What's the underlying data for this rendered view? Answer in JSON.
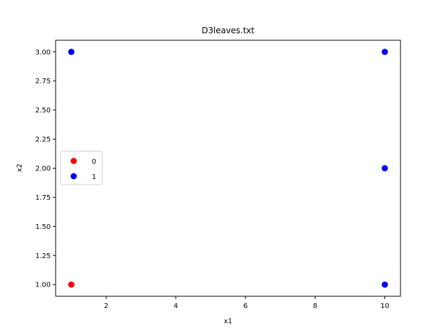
{
  "chart_data": {
    "type": "scatter",
    "title": "D3leaves.txt",
    "xlabel": "x1",
    "ylabel": "x2",
    "xlim": [
      0.55,
      10.45
    ],
    "ylim": [
      0.9,
      3.1
    ],
    "xticks": [
      2,
      4,
      6,
      8,
      10
    ],
    "xtick_labels": [
      "2",
      "4",
      "6",
      "8",
      "10"
    ],
    "yticks": [
      1.0,
      1.25,
      1.5,
      1.75,
      2.0,
      2.25,
      2.5,
      2.75,
      3.0
    ],
    "ytick_labels": [
      "1.00",
      "1.25",
      "1.50",
      "1.75",
      "2.00",
      "2.25",
      "2.50",
      "2.75",
      "3.00"
    ],
    "grid": false,
    "legend_position": "center-left",
    "series": [
      {
        "name": "0",
        "color": "#ff0000",
        "points": [
          {
            "x": 1,
            "y": 1
          }
        ]
      },
      {
        "name": "1",
        "color": "#0000ff",
        "points": [
          {
            "x": 1,
            "y": 3
          },
          {
            "x": 10,
            "y": 3
          },
          {
            "x": 10,
            "y": 2
          },
          {
            "x": 10,
            "y": 1
          }
        ]
      }
    ]
  }
}
